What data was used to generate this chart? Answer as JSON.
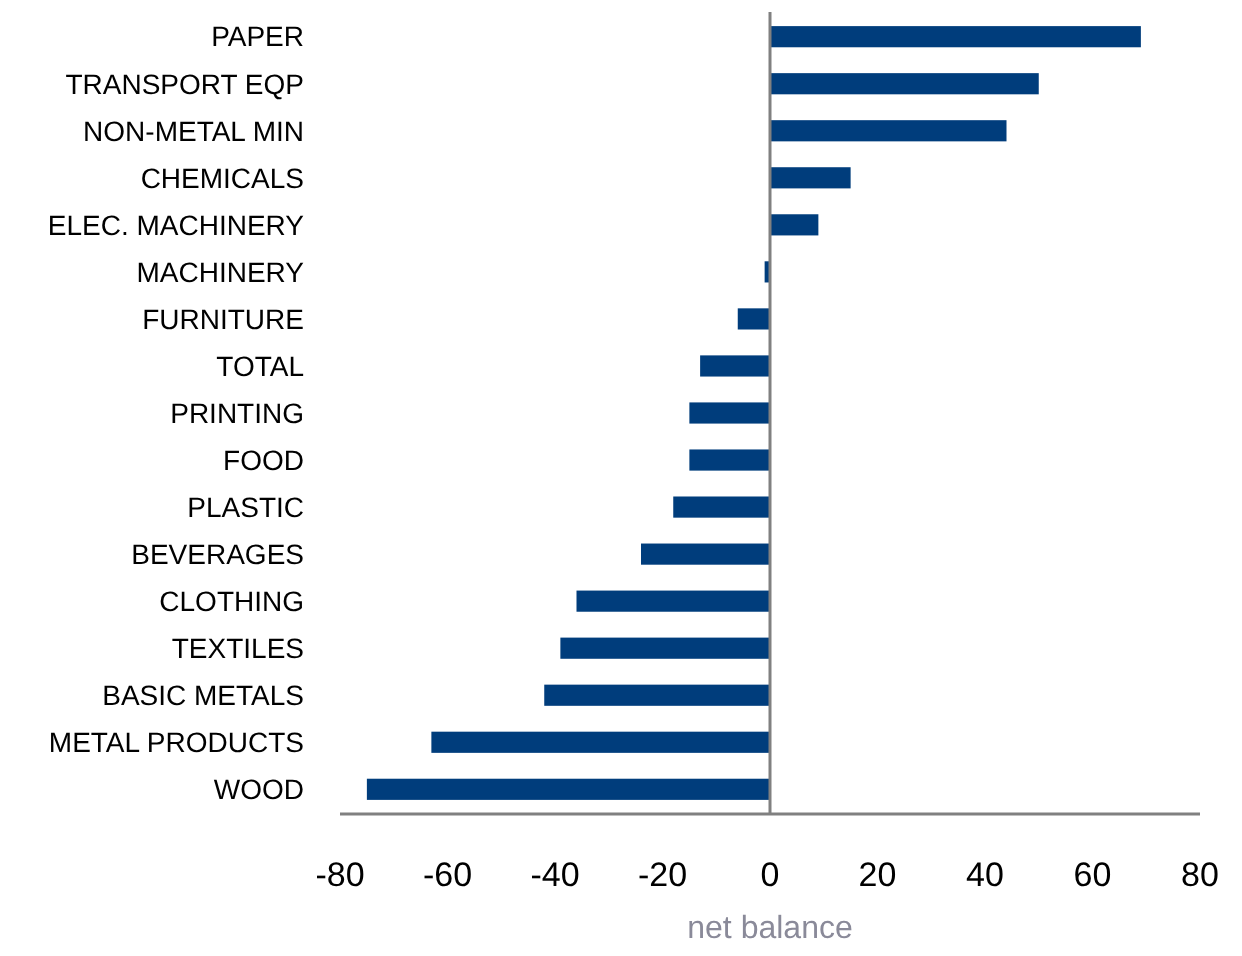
{
  "chart_data": {
    "type": "bar",
    "orientation": "horizontal",
    "xlabel": "net balance",
    "categories": [
      "PAPER",
      "TRANSPORT EQP",
      "NON-METAL MIN",
      "CHEMICALS",
      "ELEC. MACHINERY",
      "MACHINERY",
      "FURNITURE",
      "TOTAL",
      "PRINTING",
      "FOOD",
      "PLASTIC",
      "BEVERAGES",
      "CLOTHING",
      "TEXTILES",
      "BASIC METALS",
      "METAL PRODUCTS",
      "WOOD"
    ],
    "values": [
      69,
      50,
      44,
      15,
      9,
      -1,
      -6,
      -13,
      -15,
      -15,
      -18,
      -24,
      -36,
      -39,
      -42,
      -63,
      -75
    ],
    "color": "#003d7c",
    "xlim": [
      -80,
      80
    ],
    "xticks": [
      -80,
      -60,
      -40,
      -20,
      0,
      20,
      40,
      60,
      80
    ]
  }
}
